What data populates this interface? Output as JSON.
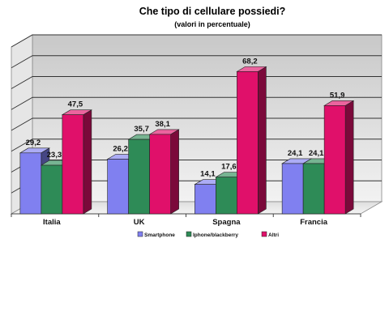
{
  "chart_data": {
    "type": "bar",
    "title": "Che tipo di cellulare possiedi?",
    "subtitle": "(valori in percentuale)",
    "categories": [
      "Italia",
      "UK",
      "Spagna",
      "Francia"
    ],
    "series": [
      {
        "name": "Smartphone",
        "values": [
          29.2,
          26.2,
          14.1,
          24.1
        ],
        "color": "#8080f0"
      },
      {
        "name": "Iphone/blackberry",
        "values": [
          23.3,
          35.7,
          17.6,
          24.1
        ],
        "color": "#2e8b57"
      },
      {
        "name": "Altri",
        "values": [
          47.5,
          38.1,
          68.2,
          51.9
        ],
        "color": "#e0106a"
      }
    ],
    "value_labels": [
      [
        "29,2",
        "26,2",
        "14,1",
        "24,1"
      ],
      [
        "23,3",
        "35,7",
        "17,6",
        "24,1"
      ],
      [
        "47,5",
        "38,1",
        "68,2",
        "51,9"
      ]
    ],
    "ylim": [
      0,
      80
    ],
    "grid": true,
    "legend_position": "bottom",
    "style": "3d"
  }
}
